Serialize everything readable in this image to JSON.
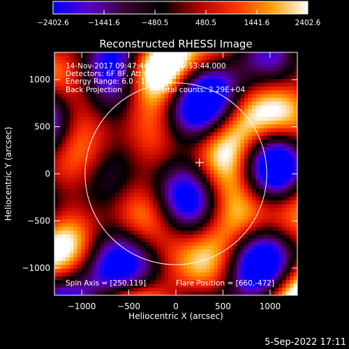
{
  "chart_data": {
    "type": "heatmap",
    "title": "Reconstructed RHESSI Image",
    "xlabel": "Heliocentric X (arcsec)",
    "ylabel": "Heliocentric Y (arcsec)",
    "xlim": [
      -1290,
      1290
    ],
    "ylim": [
      -1290,
      1290
    ],
    "xticks": [
      -1000,
      -500,
      0,
      500,
      1000
    ],
    "xtick_labels": [
      "−1000",
      "−500",
      "0",
      "500",
      "1000"
    ],
    "yticks": [
      -1000,
      -500,
      0,
      500,
      1000
    ],
    "ytick_labels": [
      "−1000",
      "−500",
      "0",
      "500",
      "1000"
    ],
    "colorbar": {
      "range": [
        -2402.6,
        2402.6
      ],
      "ticks": [
        -2402.6,
        -1441.6,
        -480.5,
        480.5,
        1441.6,
        2402.6
      ],
      "tick_labels": [
        "−2402.6",
        "−1441.6",
        "−480.5",
        "480.5",
        "1441.6",
        "2402.6"
      ],
      "colors": [
        "#0000ff",
        "#5a00c8",
        "#3a0030",
        "#000000",
        "#b00000",
        "#ff3000",
        "#ffa000",
        "#ffffff"
      ]
    },
    "annotations": {
      "time_range": "14-Nov-2017 09:47:44.000 to 09:53:44.000",
      "detectors": "Detectors: 6F 8F, Att 0",
      "energy_range": "Energy Range: 6.0 - 12.0 keV",
      "method": "Back Projection",
      "total_counts": "Total counts: 2.29E+04",
      "spin_axis": "Spin Axis = [250,119]",
      "flare_position": "Flare Position = [660,-472]"
    },
    "solar_limb_radius": 965,
    "center_marker": [
      250,
      119
    ],
    "grid": false
  },
  "footer": {
    "timestamp": "5-Sep-2022 17:11"
  }
}
